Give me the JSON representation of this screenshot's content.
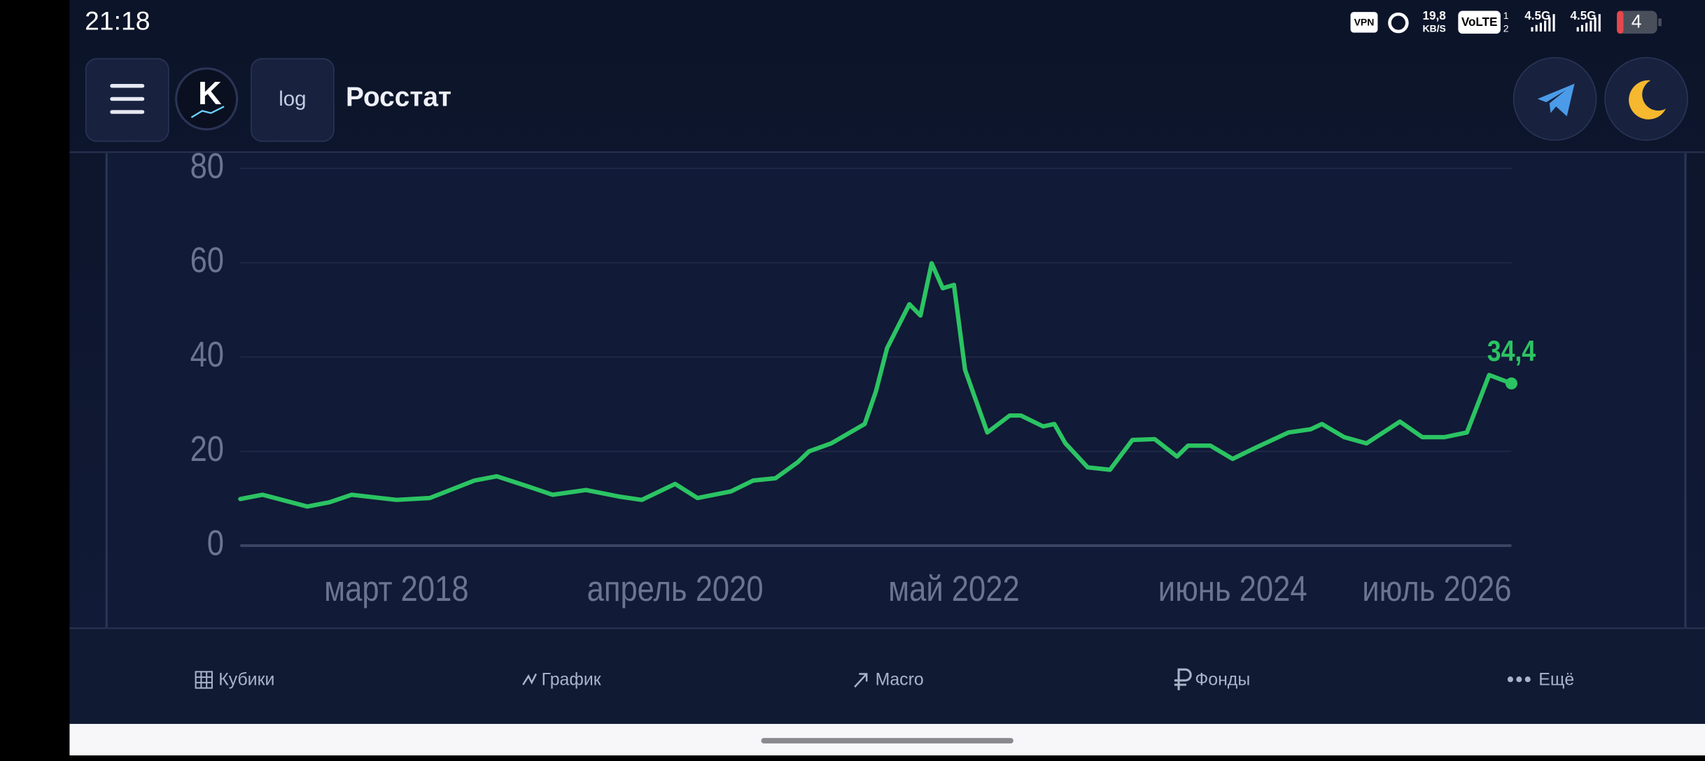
{
  "status_bar": {
    "time": "21:18",
    "vpn": "VPN",
    "speed": "19,8",
    "speed_unit": "KB/S",
    "volte": "VoLTE",
    "sim_slots": [
      "1",
      "2"
    ],
    "network": [
      "4.5G",
      "4.5G"
    ],
    "battery": "4"
  },
  "header": {
    "logo": "K",
    "log_button": "log",
    "title": "Росстат"
  },
  "chart_data": {
    "type": "line",
    "x": [
      "2017-01",
      "2017-03",
      "2017-07",
      "2017-09",
      "2017-11",
      "2018-03",
      "2018-06",
      "2018-10",
      "2018-12",
      "2019-03",
      "2019-05",
      "2019-08",
      "2019-11",
      "2020-01",
      "2020-04",
      "2020-06",
      "2020-09",
      "2020-11",
      "2021-01",
      "2021-03",
      "2021-04",
      "2021-06",
      "2021-09",
      "2021-10",
      "2021-11",
      "2022-01",
      "2022-02",
      "2022-03",
      "2022-04",
      "2022-05",
      "2022-06",
      "2022-08",
      "2022-10",
      "2022-11",
      "2023-01",
      "2023-02",
      "2023-03",
      "2023-05",
      "2023-07",
      "2023-09",
      "2023-11",
      "2024-01",
      "2024-02",
      "2024-04",
      "2024-06",
      "2024-08",
      "2024-11",
      "2025-01",
      "2025-02",
      "2025-04",
      "2025-06",
      "2025-09",
      "2025-11",
      "2026-01",
      "2026-03",
      "2026-05",
      "2026-07"
    ],
    "values": [
      9.9,
      10.8,
      8.3,
      9.2,
      10.8,
      9.7,
      10.1,
      13.8,
      14.7,
      12.4,
      10.8,
      11.8,
      10.4,
      9.7,
      13.1,
      10.1,
      11.5,
      13.8,
      14.3,
      17.7,
      20.0,
      21.7,
      25.8,
      32.7,
      41.9,
      51.2,
      48.8,
      59.9,
      54.6,
      55.3,
      37.3,
      24.0,
      27.6,
      27.6,
      25.3,
      25.8,
      21.7,
      16.6,
      16.1,
      22.4,
      22.6,
      18.9,
      21.2,
      21.2,
      18.4,
      20.7,
      24.0,
      24.7,
      25.8,
      23.0,
      21.7,
      26.3,
      23.0,
      23.0,
      24.0,
      36.2,
      34.4
    ],
    "value_labels": [
      null,
      null,
      null,
      null,
      null,
      null,
      null,
      null,
      null,
      null,
      null,
      null,
      null,
      null,
      null,
      null,
      null,
      null,
      null,
      null,
      null,
      null,
      null,
      null,
      null,
      null,
      null,
      null,
      null,
      null,
      null,
      null,
      null,
      null,
      null,
      null,
      null,
      null,
      null,
      null,
      null,
      null,
      null,
      null,
      null,
      null,
      null,
      null,
      null,
      null,
      null,
      null,
      null,
      null,
      null,
      null,
      "34,4"
    ],
    "color": "#2bc463",
    "xlim": [
      "2017-01",
      "2026-07"
    ],
    "xticks": [
      {
        "value": "2018-03",
        "label": "март 2018"
      },
      {
        "value": "2020-04",
        "label": "апрель 2020"
      },
      {
        "value": "2022-05",
        "label": "май 2022"
      },
      {
        "value": "2024-06",
        "label": "июнь 2024"
      },
      {
        "value": "2026-07",
        "label": "июль 2026"
      }
    ],
    "ylim": [
      0,
      80
    ],
    "yticks": [
      0,
      20,
      40,
      60,
      80
    ],
    "grid": true
  },
  "nav": [
    {
      "label": "Кубики"
    },
    {
      "label": "График"
    },
    {
      "label": "Macro"
    },
    {
      "label": "Фонды"
    },
    {
      "label": "Ещё"
    }
  ]
}
